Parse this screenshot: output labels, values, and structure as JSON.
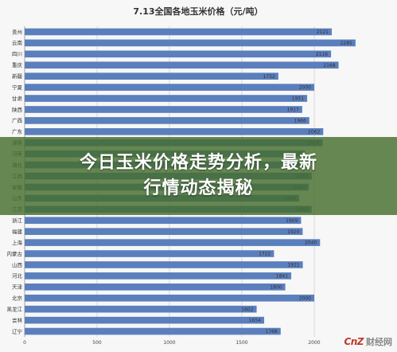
{
  "chart_data": {
    "type": "bar",
    "orientation": "horizontal",
    "title": "7.13全国各地玉米价格（元/吨）",
    "categories": [
      "贵州",
      "云南",
      "四川",
      "重庆",
      "新疆",
      "宁夏",
      "甘肃",
      "陕西",
      "广西",
      "广东",
      "湖南",
      "河南",
      "湖北",
      "江西",
      "安徽",
      "山东",
      "江苏",
      "浙江",
      "福建",
      "上海",
      "内蒙古",
      "山西",
      "河北",
      "天津",
      "北京",
      "黑龙江",
      "吉林",
      "辽宁"
    ],
    "values": [
      2121,
      2285,
      2116,
      2168,
      1752,
      2000,
      1951,
      1917,
      1966,
      2062,
      2057,
      1936,
      1962,
      1983,
      1962,
      1896,
      1982,
      1909,
      1920,
      2040,
      1722,
      1921,
      1841,
      1800,
      2000,
      1602,
      1654,
      1768
    ],
    "xlim": [
      0,
      2500
    ],
    "xticks": [
      0,
      500,
      1000,
      1500,
      2000
    ],
    "grid": true,
    "bar_color": "#5b7fbd"
  },
  "banner": {
    "line1": "今日玉米价格走势分析，最新",
    "line2": "行情动态揭秘"
  },
  "watermark": {
    "logo": "CnZ",
    "text": "财经网"
  }
}
